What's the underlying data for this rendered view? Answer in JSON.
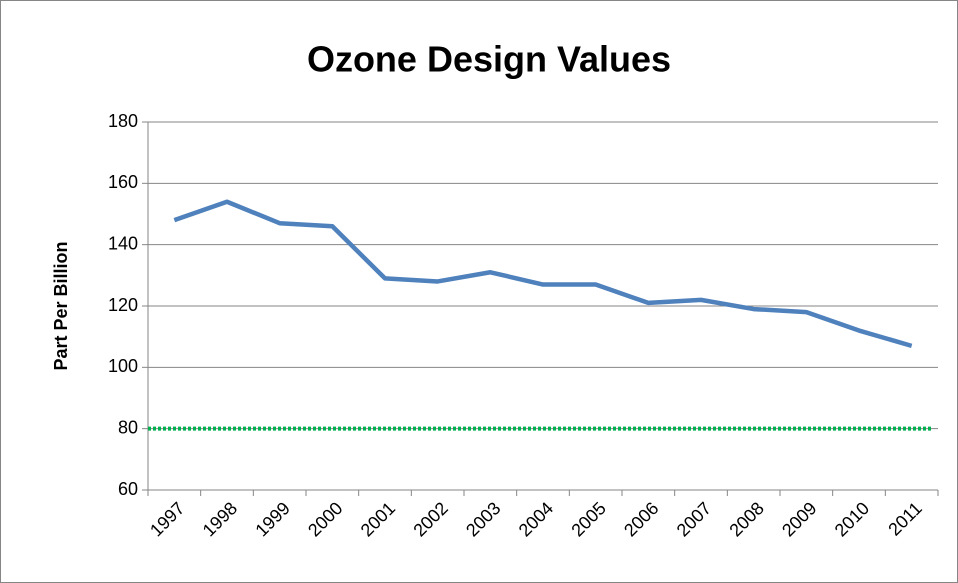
{
  "chart_data": {
    "type": "line",
    "title": "Ozone Design Values",
    "y_label": "Part Per Billion",
    "categories": [
      "1997",
      "1998",
      "1999",
      "2000",
      "2001",
      "2002",
      "2003",
      "2004",
      "2005",
      "2006",
      "2007",
      "2008",
      "2009",
      "2010",
      "2011"
    ],
    "series": [
      {
        "color": "#4f81bd",
        "values": [
          148,
          154,
          147,
          146,
          129,
          128,
          131,
          127,
          127,
          121,
          122,
          119,
          118,
          112,
          107
        ]
      }
    ],
    "reference_line": {
      "value": 80,
      "color": "#00b050",
      "style": "dotted"
    },
    "ylim": [
      60,
      180
    ],
    "yticks": [
      60,
      80,
      100,
      120,
      140,
      160,
      180
    ],
    "grid": true
  }
}
